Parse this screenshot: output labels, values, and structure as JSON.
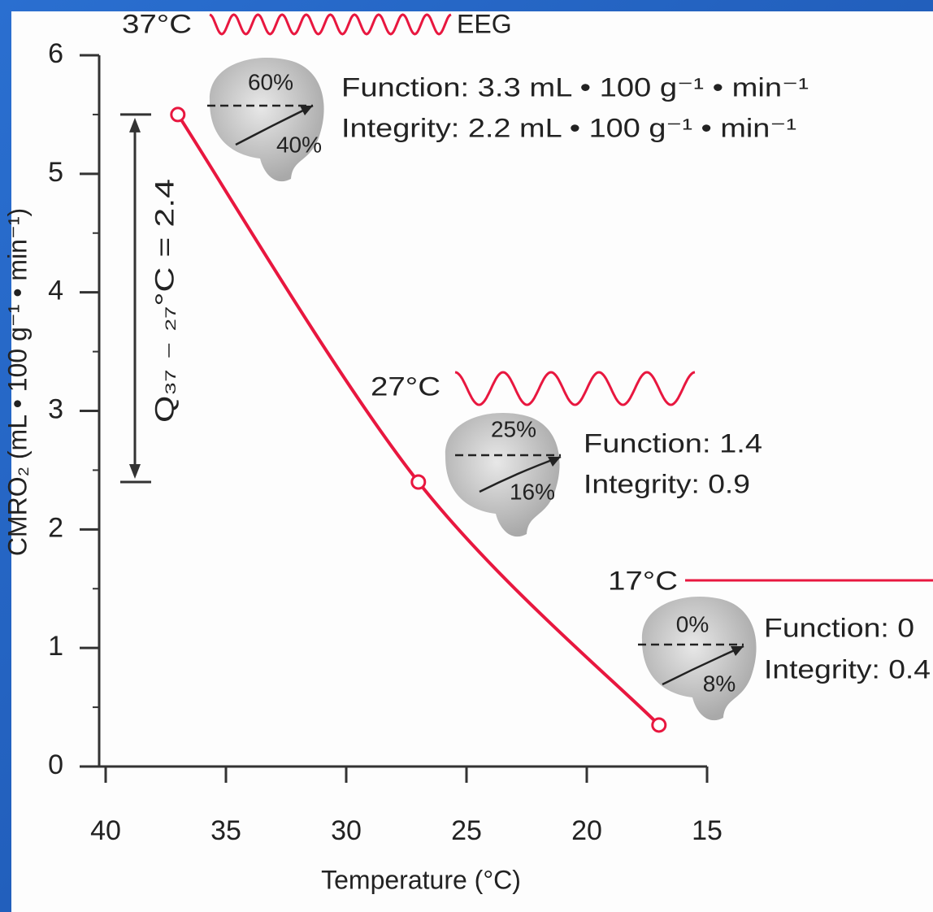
{
  "chart_data": {
    "type": "line",
    "x_label": "Temperature (°C)",
    "y_label": "CMRO₂ (mL • 100 g⁻¹ • min⁻¹)",
    "x": [
      37,
      27,
      17
    ],
    "series": [
      {
        "values": [
          5.5,
          2.4,
          0.35
        ],
        "color": "#e8173f"
      }
    ],
    "xlim": [
      40,
      15
    ],
    "ylim": [
      0,
      6
    ],
    "xticks": [
      40,
      35,
      30,
      25,
      20,
      15
    ],
    "yticks": [
      0,
      1,
      2,
      3,
      4,
      5,
      6
    ],
    "q_label": "Q₃₇ ₋ ₂₇°C = 2.4",
    "states": [
      {
        "temp": "37°C",
        "eeg_label": "EEG",
        "upper_pct": "60%",
        "lower_pct": "40%",
        "function": "Function: 3.3 mL • 100 g⁻¹ •  min⁻¹",
        "integrity": "Integrity: 2.2 mL • 100 g⁻¹ • min⁻¹"
      },
      {
        "temp": "27°C",
        "upper_pct": "25%",
        "lower_pct": "16%",
        "function": "Function: 1.4",
        "integrity": "Integrity: 0.9"
      },
      {
        "temp": "17°C",
        "upper_pct": "0%",
        "lower_pct": "8%",
        "function": "Function: 0",
        "integrity": "Integrity: 0.4"
      }
    ]
  }
}
